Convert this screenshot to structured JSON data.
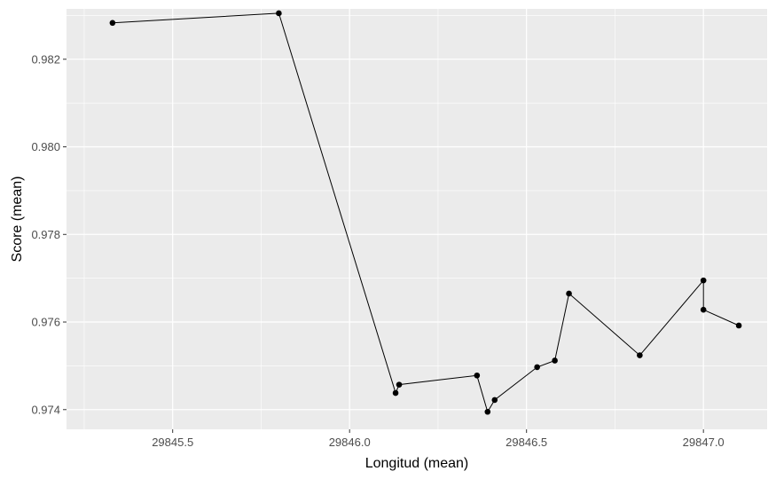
{
  "chart_data": {
    "type": "line",
    "title": "",
    "xlabel": "Longitud (mean)",
    "ylabel": "Score (mean)",
    "xlim": [
      29845.2,
      29847.18
    ],
    "ylim": [
      0.97355,
      0.98315
    ],
    "x_ticks": [
      29845.5,
      29846.0,
      29846.5,
      29847.0
    ],
    "x_tick_labels": [
      "29845.5",
      "29846.0",
      "29846.5",
      "29847.0"
    ],
    "y_ticks": [
      0.974,
      0.976,
      0.978,
      0.98,
      0.982
    ],
    "y_tick_labels": [
      "0.974",
      "0.976",
      "0.978",
      "0.980",
      "0.982"
    ],
    "grid": true,
    "legend": "none",
    "colors": {
      "panel_background": "#ebebeb",
      "grid": "#ffffff",
      "line": "#000000",
      "point": "#000000"
    },
    "series": [
      {
        "x": [
          29845.33,
          29845.8,
          29846.13,
          29846.14,
          29846.36,
          29846.39,
          29846.41,
          29846.53,
          29846.58,
          29846.62,
          29846.82,
          29847.0,
          29847.0,
          29847.1
        ],
        "y": [
          0.98283,
          0.98305,
          0.97438,
          0.97457,
          0.97478,
          0.97395,
          0.97422,
          0.97497,
          0.97512,
          0.97665,
          0.97524,
          0.97695,
          0.97628,
          0.97592
        ]
      }
    ]
  }
}
